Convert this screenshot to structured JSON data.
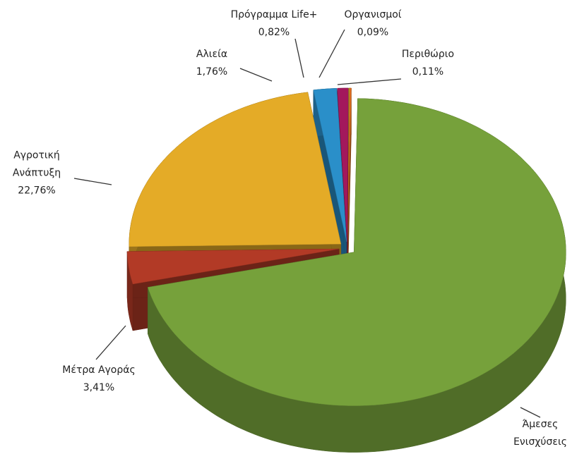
{
  "chart_data": {
    "type": "pie3d",
    "categories": [
      "Άμεσες Ενισχύσεις",
      "Μέτρα Αγοράς",
      "Αγροτική Ανάπτυξη",
      "Αλιεία",
      "Πρόγραμμα Life+",
      "Οργανισμοί",
      "Περιθώριο"
    ],
    "values": [
      71.05,
      3.41,
      22.76,
      1.76,
      0.82,
      0.09,
      0.11
    ],
    "value_labels": [
      null,
      "3,41%",
      "22,76%",
      "1,76%",
      "0,82%",
      "0,09%",
      "0,11%"
    ],
    "colors": [
      "#76a13b",
      "#b23a26",
      "#e4ab27",
      "#2a8fc9",
      "#a3185c",
      "#aaa420",
      "#e0701f"
    ]
  }
}
